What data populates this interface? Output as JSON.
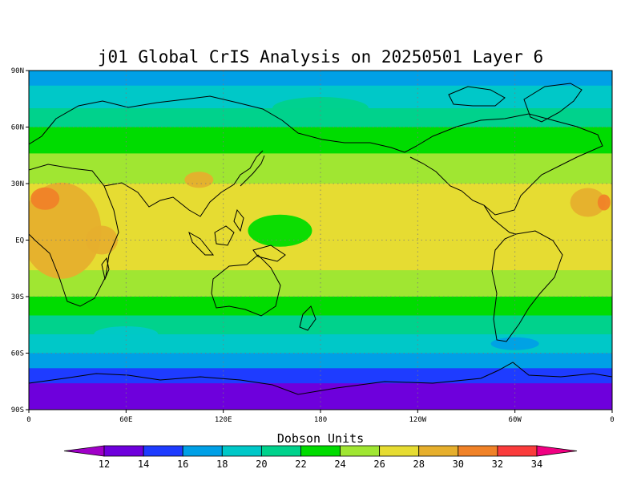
{
  "title": "j01 Global CrIS Analysis on 20250501 Layer 6",
  "colorbar": {
    "title": "Dobson Units",
    "labels": [
      "12",
      "14",
      "16",
      "18",
      "20",
      "22",
      "24",
      "26",
      "28",
      "30",
      "32",
      "34"
    ],
    "colors": [
      "#a000c8",
      "#6e00dc",
      "#1e3cff",
      "#00a0e6",
      "#00c8c8",
      "#00d28c",
      "#00dc00",
      "#a0e632",
      "#e6dc32",
      "#e6af2d",
      "#f08228",
      "#fa3c3c",
      "#f00082"
    ]
  },
  "lat_labels": [
    "90N",
    "60N",
    "30N",
    "EQ",
    "30S",
    "60S",
    "90S"
  ],
  "lon_labels": [
    "0",
    "60E",
    "120E",
    "180",
    "120W",
    "60W",
    "0"
  ],
  "chart_data": {
    "type": "heatmap",
    "title": "j01 Global CrIS Analysis on 20250501 Layer 6",
    "xlabel": "",
    "ylabel": "",
    "xlim": [
      0,
      360
    ],
    "ylim": [
      -90,
      90
    ],
    "x_ticks": [
      "0",
      "60E",
      "120E",
      "180",
      "120W",
      "60W",
      "0"
    ],
    "y_ticks": [
      "90N",
      "60N",
      "30N",
      "EQ",
      "30S",
      "60S",
      "90S"
    ],
    "colorbar_units": "Dobson Units",
    "colorbar_levels": [
      12,
      14,
      16,
      18,
      20,
      22,
      24,
      26,
      28,
      30,
      32,
      34
    ],
    "grid": true,
    "zonal_profile_approx": {
      "lat": [
        90,
        75,
        60,
        45,
        30,
        15,
        0,
        -15,
        -30,
        -45,
        -60,
        -75,
        -90
      ],
      "value": [
        17,
        19,
        22,
        24,
        26,
        27,
        27,
        26,
        24,
        21,
        18,
        14,
        13
      ]
    }
  }
}
